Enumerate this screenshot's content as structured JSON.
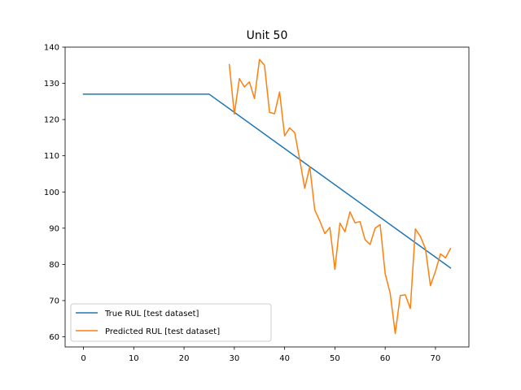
{
  "chart_data": {
    "type": "line",
    "title": "Unit 50",
    "xlabel": "",
    "ylabel": "",
    "xlim": [
      -3.65,
      76.65
    ],
    "ylim": [
      57.2,
      140.0
    ],
    "xticks": [
      0,
      10,
      20,
      30,
      40,
      50,
      60,
      70
    ],
    "yticks": [
      60,
      70,
      80,
      90,
      100,
      110,
      120,
      130,
      140
    ],
    "grid": false,
    "legend_position": "lower-left",
    "series": [
      {
        "name": "True RUL [test dataset]",
        "color": "#1f77b4",
        "x": [
          0,
          25,
          73
        ],
        "y": [
          127,
          127,
          79
        ]
      },
      {
        "name": "Predicted RUL [test dataset]",
        "color": "#ff7f0e",
        "x": [
          29,
          30,
          31,
          32,
          33,
          34,
          35,
          36,
          37,
          38,
          39,
          40,
          41,
          42,
          43,
          44,
          45,
          46,
          47,
          48,
          49,
          50,
          51,
          52,
          53,
          54,
          55,
          56,
          57,
          58,
          59,
          60,
          61,
          62,
          63,
          64,
          65,
          66,
          67,
          68,
          69,
          70,
          71,
          72,
          73
        ],
        "y": [
          135.2,
          121.5,
          131.3,
          129.0,
          130.4,
          125.8,
          136.6,
          135.0,
          122.0,
          121.6,
          127.6,
          115.5,
          117.7,
          116.4,
          109.0,
          101.0,
          107.0,
          95.0,
          92.0,
          88.5,
          90.2,
          78.6,
          91.4,
          89.0,
          94.5,
          91.5,
          91.8,
          86.8,
          85.5,
          90.0,
          91.0,
          77.4,
          72.0,
          60.9,
          71.4,
          71.6,
          67.8,
          89.8,
          87.7,
          84.4,
          74.1,
          78.1,
          82.9,
          81.8,
          84.4
        ]
      }
    ]
  }
}
